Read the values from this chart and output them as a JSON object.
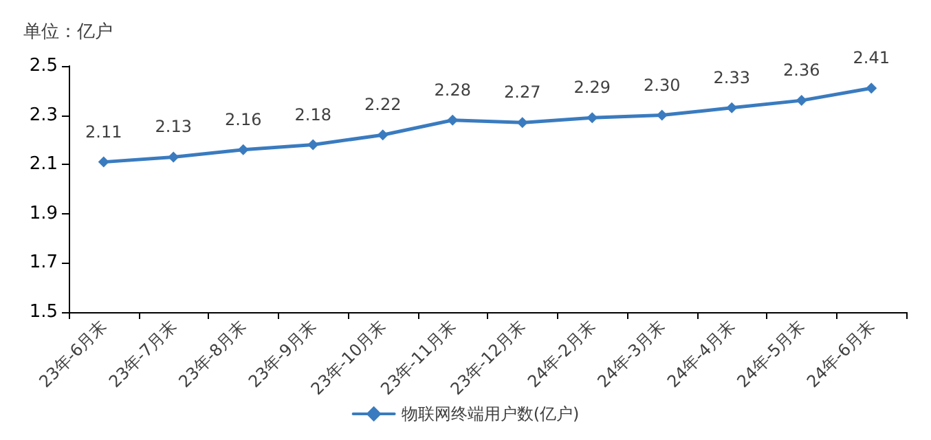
{
  "chart_data": {
    "type": "line",
    "ylabel": "单位：亿户",
    "categories": [
      "23年-6月末",
      "23年-7月末",
      "23年-8月末",
      "23年-9月末",
      "23年-10月末",
      "23年-11月末",
      "23年-12月末",
      "24年-2月末",
      "24年-3月末",
      "24年-4月末",
      "24年-5月末",
      "24年-6月末"
    ],
    "series": [
      {
        "name": "物联网终端用户数(亿户)",
        "color": "#3a7bbf",
        "values": [
          2.11,
          2.13,
          2.16,
          2.18,
          2.22,
          2.28,
          2.27,
          2.29,
          2.3,
          2.33,
          2.36,
          2.41
        ],
        "value_labels": [
          "2.11",
          "2.13",
          "2.16",
          "2.18",
          "2.22",
          "2.28",
          "2.27",
          "2.29",
          "2.30",
          "2.33",
          "2.36",
          "2.41"
        ]
      }
    ],
    "ylim": [
      1.5,
      2.5
    ],
    "yticks": [
      1.5,
      1.7,
      1.9,
      2.1,
      2.3,
      2.5
    ],
    "grid": false,
    "legend": "bottom",
    "marker": "diamond",
    "line_style": "solid"
  }
}
